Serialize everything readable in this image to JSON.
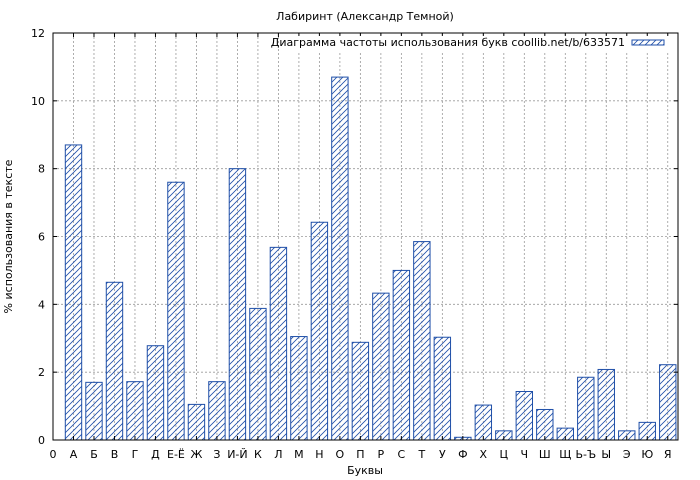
{
  "chart_data": {
    "type": "bar",
    "title": "Лабиринт (Александр Темной)",
    "xlabel": "Буквы",
    "ylabel": "% использования в тексте",
    "legend": {
      "label": "Диаграмма частоты использования букв coollib.net/b/633571",
      "placement": "top-right"
    },
    "x_origin_label": "0",
    "categories": [
      "А",
      "Б",
      "В",
      "Г",
      "Д",
      "Е-Ё",
      "Ж",
      "З",
      "И-Й",
      "К",
      "Л",
      "М",
      "Н",
      "О",
      "П",
      "Р",
      "С",
      "Т",
      "У",
      "Ф",
      "Х",
      "Ц",
      "Ч",
      "Ш",
      "Щ",
      "Ь-Ъ",
      "Ы",
      "Э",
      "Ю",
      "Я"
    ],
    "values": [
      8.7,
      1.7,
      4.65,
      1.72,
      2.78,
      7.6,
      1.05,
      1.72,
      8.0,
      3.88,
      5.68,
      3.05,
      6.42,
      10.7,
      2.88,
      4.33,
      5.0,
      5.85,
      3.03,
      0.08,
      1.03,
      0.27,
      1.43,
      0.9,
      0.35,
      1.85,
      2.08,
      0.27,
      0.52,
      2.22
    ],
    "ylim": [
      0,
      12
    ],
    "yticks": [
      0,
      2,
      4,
      6,
      8,
      10,
      12
    ],
    "grid": true,
    "colors": {
      "bar": "#1f4fa8",
      "grid": "#9a9a9a"
    }
  }
}
